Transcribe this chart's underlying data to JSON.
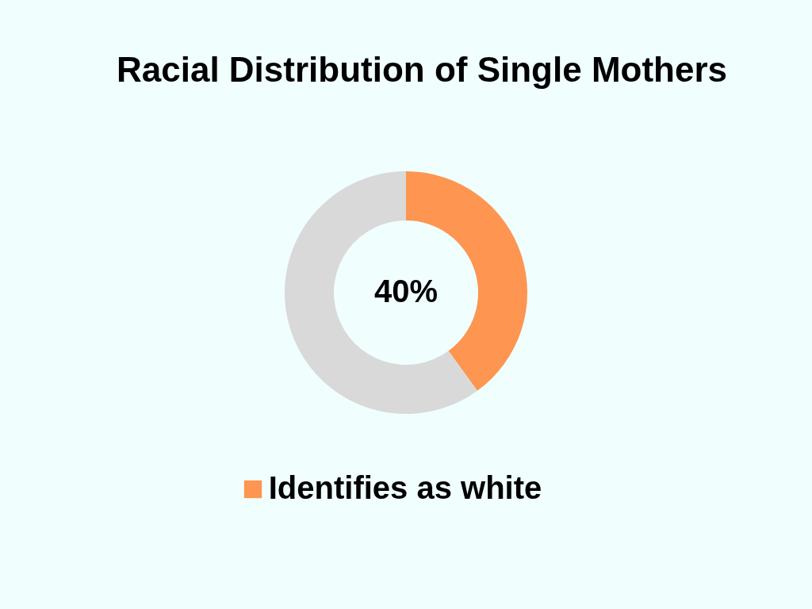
{
  "chart_data": {
    "type": "donut",
    "title": "Racial Distribution of Single Mothers",
    "categories": [
      "Identifies as white",
      null
    ],
    "values": [
      40,
      60
    ],
    "colors": [
      "#fe9550",
      "#d9d9d9"
    ],
    "value_labels": [
      "40%",
      null
    ],
    "legend": "bottom"
  }
}
